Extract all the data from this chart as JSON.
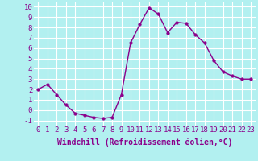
{
  "x": [
    0,
    1,
    2,
    3,
    4,
    5,
    6,
    7,
    8,
    9,
    10,
    11,
    12,
    13,
    14,
    15,
    16,
    17,
    18,
    19,
    20,
    21,
    22,
    23
  ],
  "y": [
    2,
    2.5,
    1.5,
    0.5,
    -0.3,
    -0.5,
    -0.7,
    -0.8,
    -0.7,
    1.5,
    6.5,
    8.3,
    9.9,
    9.3,
    7.5,
    8.5,
    8.4,
    7.3,
    6.5,
    4.8,
    3.7,
    3.3,
    3.0,
    3.0
  ],
  "line_color": "#8B008B",
  "marker": "o",
  "marker_size": 2.5,
  "linewidth": 1.0,
  "bg_color": "#b2f0f0",
  "grid_color": "#ffffff",
  "xlabel": "Windchill (Refroidissement éolien,°C)",
  "xlabel_fontsize": 7,
  "ylabel_ticks": [
    -1,
    0,
    1,
    2,
    3,
    4,
    5,
    6,
    7,
    8,
    9,
    10
  ],
  "xtick_labels": [
    "0",
    "1",
    "2",
    "3",
    "4",
    "5",
    "6",
    "7",
    "8",
    "9",
    "10",
    "11",
    "12",
    "13",
    "14",
    "15",
    "16",
    "17",
    "18",
    "19",
    "20",
    "21",
    "22",
    "23"
  ],
  "ylim": [
    -1.5,
    10.5
  ],
  "xlim": [
    -0.5,
    23.5
  ],
  "tick_fontsize": 6.5,
  "label_color": "#8B008B"
}
